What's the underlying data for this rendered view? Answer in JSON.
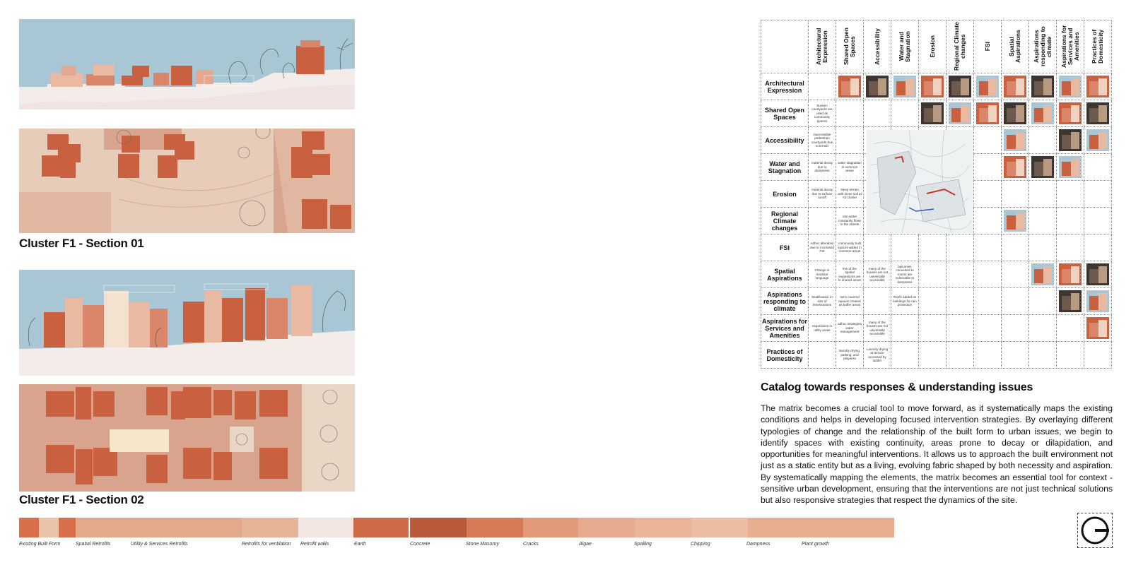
{
  "sections": [
    {
      "title": "Cluster F1 - Section 01"
    },
    {
      "title": "Cluster F1 - Section 02"
    }
  ],
  "matrix": {
    "columns": [
      "Architectural Expression",
      "Shared Open Spaces",
      "Accessibility",
      "Water and Stagnation",
      "Erosion",
      "Regional Climate changes",
      "FSI",
      "Spatial Aspirations",
      "Aspirations responding to climate",
      "Aspirations for Services and Amenities",
      "Practices of Domesticity"
    ],
    "rows": [
      {
        "label": "Architectural Expression",
        "cells": [
          "",
          "img",
          "img",
          "img",
          "img",
          "img",
          "img",
          "img",
          "img",
          "img",
          "img"
        ]
      },
      {
        "label": "Shared Open Spaces",
        "cells": [
          "Sunken courtyards are used as community spaces",
          "",
          "",
          "",
          "img",
          "img",
          "img",
          "img",
          "img",
          "img",
          "img"
        ]
      },
      {
        "label": "Accessibility",
        "cells": [
          "inaccessible pedestrian courtyards due to terrain",
          "",
          "",
          "",
          "",
          "",
          "",
          "img",
          "",
          "img",
          "img"
        ]
      },
      {
        "label": "Water and Stagnation",
        "cells": [
          "material decay due to dampness",
          "water stagnation in common areas",
          "",
          "",
          "",
          "",
          "",
          "img",
          "img",
          "img",
          ""
        ]
      },
      {
        "label": "Erosion",
        "cells": [
          "material decay due to surface runoff",
          "steep terrain with loose soil at A3 cluster",
          "",
          "",
          "",
          "",
          "",
          "",
          "",
          "",
          ""
        ]
      },
      {
        "label": "Regional Climate changes",
        "cells": [
          "",
          "rain-water constantly flows in the streets",
          "",
          "",
          "",
          "",
          "",
          "img",
          "",
          "",
          ""
        ]
      },
      {
        "label": "FSI",
        "cells": [
          "Adhoc alteration due to increased FSI",
          "community built spaces added in common areas",
          "",
          "",
          "",
          "",
          "",
          "",
          "",
          "",
          ""
        ]
      },
      {
        "label": "Spatial Aspirations",
        "cells": [
          "Change in modular language",
          "few of the spatial expansions are in shared areas",
          "many of the houses are not universally accessible",
          "balconies converted to rooms are vulnerable to dampness",
          "",
          "",
          "",
          "",
          "img",
          "img",
          "img"
        ]
      },
      {
        "label": "Aspirations responding to climate",
        "cells": [
          "Modification in size of fenestrations",
          "semi covered spaces created as buffer areas",
          "",
          "Roofs added on buildings for rain protection",
          "",
          "",
          "",
          "",
          "",
          "img",
          "img"
        ]
      },
      {
        "label": "Aspirations for Services and Amenities",
        "cells": [
          "expansions in utility areas",
          "adhoc strategies water management",
          "many of the houses are not universally accessible",
          "",
          "",
          "",
          "",
          "",
          "",
          "",
          "img"
        ]
      },
      {
        "label": "Practices of Domesticity",
        "cells": [
          "",
          "laundry drying, parking, and playarea",
          "Laundry drying at terrace accessed by ladder",
          "",
          "",
          "",
          "",
          "",
          "",
          "",
          ""
        ]
      }
    ]
  },
  "catalog": {
    "title": "Catalog towards responses & understanding issues",
    "body": "The matrix becomes a crucial tool to move forward, as it systematically maps the existing conditions and helps in developing focused intervention strategies. By overlaying different typologies of change and the relationship of the built form to urban issues, we begin to identify spaces with existing continuity, areas prone to decay or dilapidation, and opportunities for meaningful interventions. It allows us to approach the built environment not just as a static entity but as a living, evolving fabric shaped by both necessity and aspiration. By systematically mapping the elements, the matrix becomes an essential tool for context - sensitive urban development, ensuring that the interventions are not just technical solutions but also responsive strategies that respect the dynamics of the site."
  },
  "legend": [
    {
      "label": "Existing Built Form",
      "color": "#d96e4b"
    },
    {
      "label": "Spatial Retrofits",
      "color": "#e9c3aa"
    },
    {
      "label": "Utility & Services Retrofits",
      "color": "#e2a98a"
    },
    {
      "label": "Retrofits for ventilation",
      "color": "#e2a98a"
    },
    {
      "label": "Retrofit walls",
      "color": "#e6b497"
    },
    {
      "label": "Earth",
      "color": "#f3e6e2"
    },
    {
      "label": "Concrete",
      "color": "#cf6a48"
    },
    {
      "label": "Stone Masonry",
      "color": "#b85a3b"
    },
    {
      "label": "Cracks",
      "color": "#d77a57"
    },
    {
      "label": "Algae",
      "color": "#e29a7b"
    },
    {
      "label": "Spalling",
      "color": "#e7ac8f"
    },
    {
      "label": "Chipping",
      "color": "#eab597"
    },
    {
      "label": "Dampness",
      "color": "#ebbda2"
    },
    {
      "label": "Plant growth",
      "color": "#e7ae8f"
    }
  ],
  "colors": {
    "sky": "#a8c6d3",
    "brick": "#c9603f",
    "brickLight": "#d9866a",
    "ground": "#d9a48d",
    "paleGround": "#e9d6c4"
  }
}
